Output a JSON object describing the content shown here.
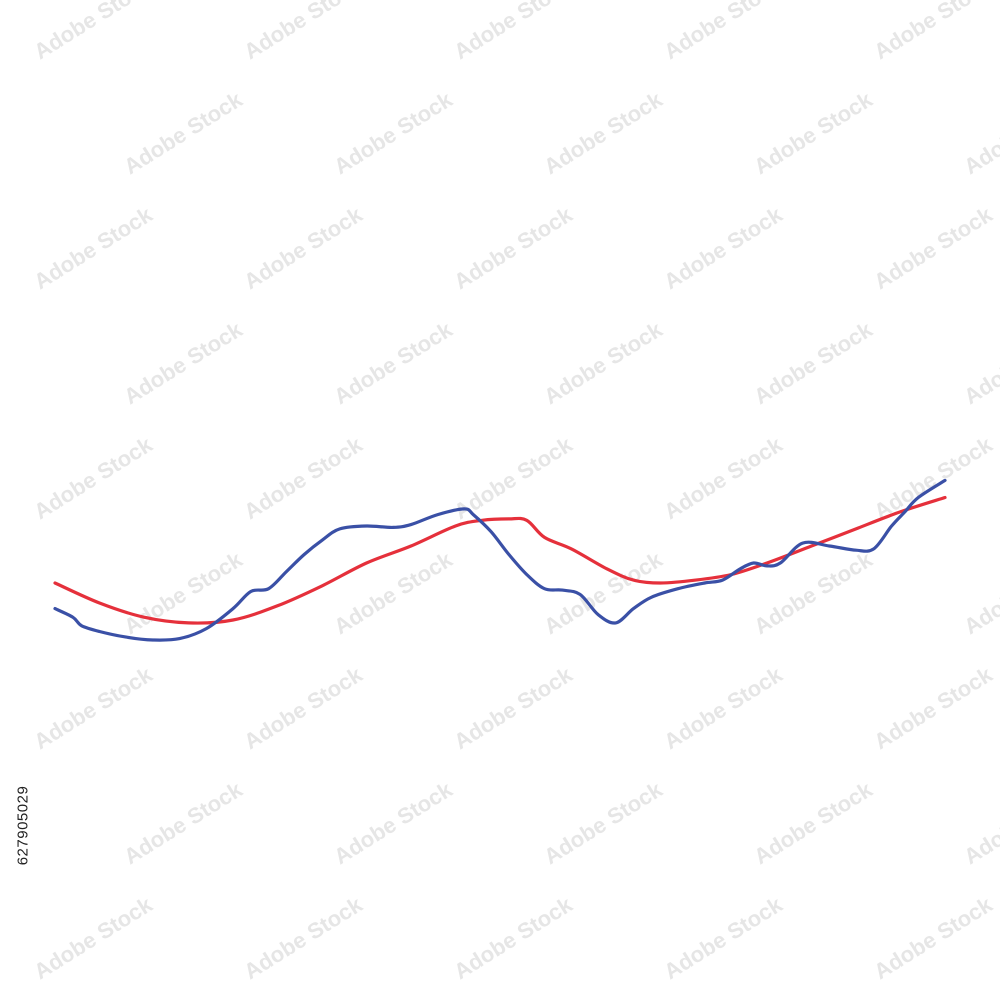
{
  "watermark": {
    "text": "Adobe Stock",
    "color": "#e6e6e6"
  },
  "stock_id": "627905029",
  "chart_data": {
    "type": "line",
    "title": "",
    "xlabel": "",
    "ylabel": "",
    "xlim": [
      0,
      100
    ],
    "ylim": [
      0,
      100
    ],
    "grid": false,
    "legend": "none",
    "series": [
      {
        "color": "#e5303b",
        "x": [
          0,
          5,
          10,
          15,
          20,
          25,
          30,
          35,
          40,
          45,
          48,
          51,
          53,
          55,
          58,
          62,
          65,
          68,
          72,
          76,
          80,
          85,
          90,
          95,
          100
        ],
        "y": [
          20,
          13,
          8,
          6,
          7,
          12,
          19,
          27,
          33,
          40,
          42,
          42.5,
          42,
          36,
          32,
          25,
          21,
          20,
          21,
          23,
          27,
          33,
          39,
          45,
          50
        ]
      },
      {
        "color": "#3a50a6",
        "x": [
          0,
          2,
          3,
          5,
          8,
          11,
          14,
          17,
          20,
          22,
          24,
          26,
          28,
          30,
          32,
          35,
          38,
          40,
          43,
          46,
          47,
          49,
          51,
          53,
          55,
          57,
          59,
          61,
          63,
          65,
          67,
          70,
          73,
          75,
          77,
          78.5,
          80,
          81.5,
          84,
          87,
          90,
          92,
          94,
          95.5,
          97,
          100
        ],
        "y": [
          11,
          8,
          5,
          3,
          1,
          0,
          0.5,
          4,
          11,
          17,
          18,
          24,
          30,
          35,
          39,
          40,
          39.5,
          40.5,
          44,
          46,
          44,
          38,
          30,
          23,
          18,
          17.5,
          16,
          9,
          6,
          11,
          15,
          18,
          20,
          21,
          25,
          27,
          26,
          27,
          34,
          33,
          31.5,
          32,
          40,
          45,
          50,
          56
        ]
      }
    ]
  }
}
